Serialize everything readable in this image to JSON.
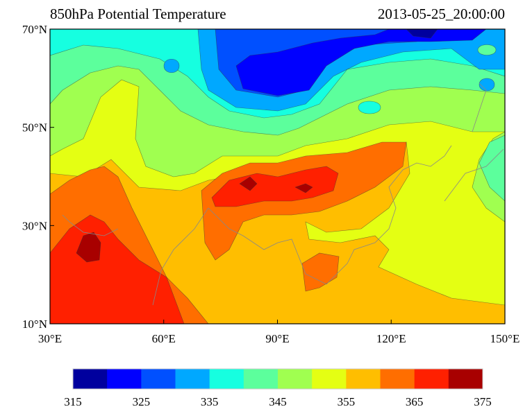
{
  "title_left": "850hPa Potential Temperature",
  "title_right": "2013-05-25_20:00:00",
  "map": {
    "lat_ticks": [
      "10°N",
      "30°N",
      "50°N",
      "70°N"
    ],
    "lon_ticks": [
      "30°E",
      "60°E",
      "90°E",
      "120°E",
      "150°E"
    ],
    "lon_range": [
      30,
      150
    ],
    "lat_range": [
      10,
      70
    ]
  },
  "colorbar": {
    "levels": [
      315,
      320,
      325,
      330,
      335,
      340,
      345,
      350,
      355,
      360,
      365,
      370,
      375
    ],
    "labels": [
      "315",
      "325",
      "335",
      "345",
      "355",
      "365",
      "375"
    ],
    "colors": [
      "#00009e",
      "#0000ff",
      "#0050ff",
      "#00a8ff",
      "#16ffe0",
      "#5cff9c",
      "#a0ff50",
      "#e4ff13",
      "#ffbe00",
      "#ff6e00",
      "#ff2000",
      "#a80000"
    ]
  }
}
